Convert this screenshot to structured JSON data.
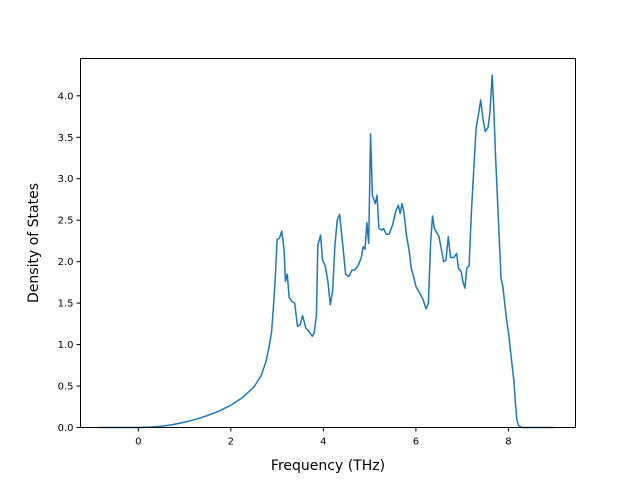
{
  "chart_data": {
    "type": "line",
    "xlabel": "Frequency (THz)",
    "ylabel": "Density of States",
    "xlim": [
      -1.25,
      9.45
    ],
    "ylim": [
      0.0,
      4.45
    ],
    "x_ticks": [
      0,
      2,
      4,
      6,
      8
    ],
    "y_ticks": [
      0.0,
      0.5,
      1.0,
      1.5,
      2.0,
      2.5,
      3.0,
      3.5,
      4.0
    ],
    "x_tick_labels": [
      "0",
      "2",
      "4",
      "6",
      "8"
    ],
    "y_tick_labels": [
      "0.0",
      "0.5",
      "1.0",
      "1.5",
      "2.0",
      "2.5",
      "3.0",
      "3.5",
      "4.0"
    ],
    "grid": false,
    "series": [
      {
        "color": "#1f77b4",
        "points": [
          [
            -0.85,
            0.0
          ],
          [
            0.0,
            0.0
          ],
          [
            0.25,
            0.005
          ],
          [
            0.5,
            0.015
          ],
          [
            0.75,
            0.035
          ],
          [
            1.0,
            0.065
          ],
          [
            1.25,
            0.1
          ],
          [
            1.5,
            0.145
          ],
          [
            1.75,
            0.2
          ],
          [
            2.0,
            0.27
          ],
          [
            2.25,
            0.36
          ],
          [
            2.5,
            0.49
          ],
          [
            2.65,
            0.62
          ],
          [
            2.75,
            0.78
          ],
          [
            2.82,
            0.95
          ],
          [
            2.88,
            1.15
          ],
          [
            2.92,
            1.45
          ],
          [
            2.96,
            1.8
          ],
          [
            3.0,
            2.27
          ],
          [
            3.05,
            2.28
          ],
          [
            3.1,
            2.37
          ],
          [
            3.15,
            2.15
          ],
          [
            3.18,
            1.76
          ],
          [
            3.22,
            1.85
          ],
          [
            3.26,
            1.57
          ],
          [
            3.32,
            1.52
          ],
          [
            3.38,
            1.5
          ],
          [
            3.44,
            1.22
          ],
          [
            3.5,
            1.24
          ],
          [
            3.55,
            1.35
          ],
          [
            3.62,
            1.2
          ],
          [
            3.7,
            1.15
          ],
          [
            3.76,
            1.1
          ],
          [
            3.8,
            1.14
          ],
          [
            3.85,
            1.35
          ],
          [
            3.88,
            2.2
          ],
          [
            3.94,
            2.32
          ],
          [
            3.98,
            2.02
          ],
          [
            4.04,
            1.95
          ],
          [
            4.1,
            1.75
          ],
          [
            4.15,
            1.48
          ],
          [
            4.2,
            1.65
          ],
          [
            4.25,
            2.2
          ],
          [
            4.3,
            2.5
          ],
          [
            4.35,
            2.57
          ],
          [
            4.42,
            2.2
          ],
          [
            4.48,
            1.85
          ],
          [
            4.55,
            1.82
          ],
          [
            4.62,
            1.9
          ],
          [
            4.68,
            1.9
          ],
          [
            4.75,
            1.95
          ],
          [
            4.82,
            2.05
          ],
          [
            4.86,
            2.18
          ],
          [
            4.9,
            2.15
          ],
          [
            4.94,
            2.47
          ],
          [
            4.98,
            2.22
          ],
          [
            5.02,
            3.54
          ],
          [
            5.06,
            2.8
          ],
          [
            5.12,
            2.7
          ],
          [
            5.16,
            2.8
          ],
          [
            5.2,
            2.4
          ],
          [
            5.26,
            2.38
          ],
          [
            5.3,
            2.4
          ],
          [
            5.36,
            2.33
          ],
          [
            5.42,
            2.33
          ],
          [
            5.5,
            2.45
          ],
          [
            5.56,
            2.6
          ],
          [
            5.62,
            2.68
          ],
          [
            5.66,
            2.58
          ],
          [
            5.7,
            2.7
          ],
          [
            5.74,
            2.6
          ],
          [
            5.8,
            2.3
          ],
          [
            5.85,
            2.15
          ],
          [
            5.9,
            1.92
          ],
          [
            5.96,
            1.8
          ],
          [
            6.0,
            1.7
          ],
          [
            6.08,
            1.62
          ],
          [
            6.15,
            1.55
          ],
          [
            6.22,
            1.43
          ],
          [
            6.27,
            1.5
          ],
          [
            6.32,
            2.25
          ],
          [
            6.36,
            2.55
          ],
          [
            6.4,
            2.4
          ],
          [
            6.45,
            2.35
          ],
          [
            6.5,
            2.3
          ],
          [
            6.55,
            2.15
          ],
          [
            6.6,
            2.0
          ],
          [
            6.65,
            2.02
          ],
          [
            6.7,
            2.3
          ],
          [
            6.75,
            2.05
          ],
          [
            6.82,
            2.05
          ],
          [
            6.88,
            2.1
          ],
          [
            6.92,
            1.92
          ],
          [
            6.98,
            1.88
          ],
          [
            7.02,
            1.75
          ],
          [
            7.06,
            1.68
          ],
          [
            7.1,
            1.92
          ],
          [
            7.15,
            1.95
          ],
          [
            7.2,
            2.6
          ],
          [
            7.25,
            3.1
          ],
          [
            7.3,
            3.6
          ],
          [
            7.36,
            3.8
          ],
          [
            7.4,
            3.95
          ],
          [
            7.45,
            3.72
          ],
          [
            7.5,
            3.57
          ],
          [
            7.56,
            3.62
          ],
          [
            7.6,
            3.8
          ],
          [
            7.65,
            4.25
          ],
          [
            7.68,
            3.9
          ],
          [
            7.72,
            3.3
          ],
          [
            7.76,
            2.8
          ],
          [
            7.8,
            2.3
          ],
          [
            7.84,
            1.8
          ],
          [
            7.88,
            1.7
          ],
          [
            7.92,
            1.5
          ],
          [
            7.96,
            1.3
          ],
          [
            8.0,
            1.15
          ],
          [
            8.04,
            0.95
          ],
          [
            8.08,
            0.75
          ],
          [
            8.12,
            0.55
          ],
          [
            8.15,
            0.3
          ],
          [
            8.18,
            0.1
          ],
          [
            8.22,
            0.02
          ],
          [
            8.3,
            0.0
          ],
          [
            9.0,
            0.0
          ]
        ]
      }
    ]
  }
}
